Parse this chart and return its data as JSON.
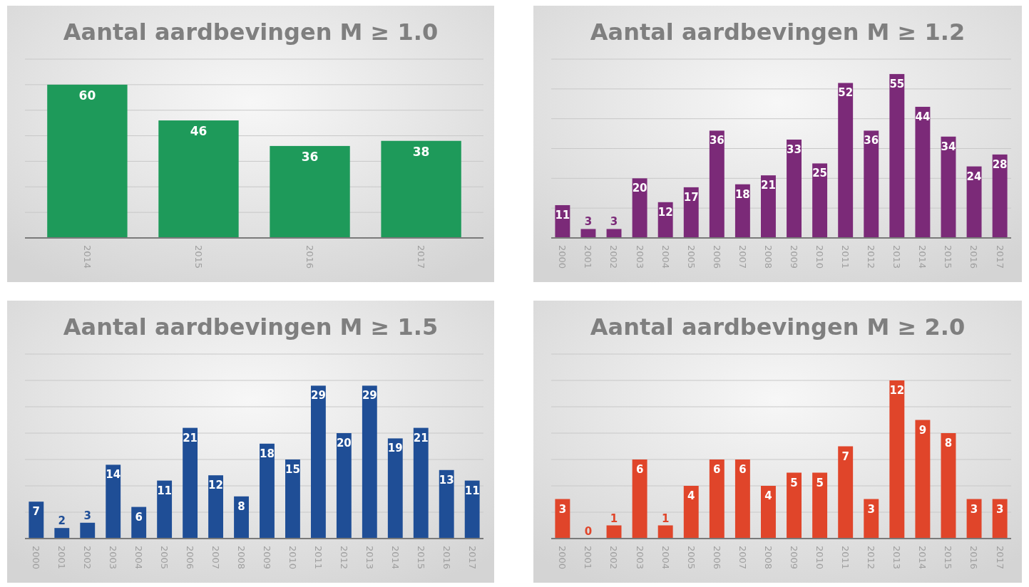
{
  "chart_data": [
    {
      "type": "bar",
      "title": "Aantal aardbevingen M ≥ 1.0",
      "categories": [
        "2014",
        "2015",
        "2016",
        "2017"
      ],
      "values": [
        60,
        46,
        36,
        38
      ],
      "color": "#1e9a5a",
      "ylim": [
        0,
        70
      ],
      "yticks": [
        {
          "value": 0,
          "label": null
        },
        {
          "value": 10,
          "label": null
        },
        {
          "value": 20,
          "label": null
        },
        {
          "value": 30,
          "label": null
        },
        {
          "value": 40,
          "label": null
        },
        {
          "value": 50,
          "label": null
        },
        {
          "value": 60,
          "label": null
        },
        {
          "value": 70,
          "label": null
        }
      ],
      "grid": "y",
      "data_labels": true,
      "tick_labels": "x"
    },
    {
      "type": "bar",
      "title": "Aantal aardbevingen M ≥ 1.2",
      "categories": [
        "2000",
        "2001",
        "2002",
        "2003",
        "2004",
        "2005",
        "2006",
        "2007",
        "2008",
        "2009",
        "2010",
        "2011",
        "2012",
        "2013",
        "2014",
        "2015",
        "2016",
        "2017"
      ],
      "values": [
        11,
        3,
        3,
        20,
        12,
        17,
        36,
        18,
        21,
        33,
        25,
        52,
        36,
        55,
        44,
        34,
        24,
        28
      ],
      "color": "#7b2a78",
      "ylim": [
        0,
        60
      ],
      "yticks": [
        {
          "value": 0,
          "label": null
        },
        {
          "value": 10,
          "label": null
        },
        {
          "value": 20,
          "label": null
        },
        {
          "value": 30,
          "label": null
        },
        {
          "value": 40,
          "label": null
        },
        {
          "value": 50,
          "label": null
        },
        {
          "value": 60,
          "label": null
        }
      ],
      "grid": "y",
      "data_labels": true,
      "tick_labels": "x"
    },
    {
      "type": "bar",
      "title": "Aantal aardbevingen M ≥ 1.5",
      "categories": [
        "2000",
        "2001",
        "2002",
        "2003",
        "2004",
        "2005",
        "2006",
        "2007",
        "2008",
        "2009",
        "2010",
        "2011",
        "2012",
        "2013",
        "2014",
        "2015",
        "2016",
        "2017"
      ],
      "values": [
        7,
        2,
        3,
        14,
        6,
        11,
        21,
        12,
        8,
        18,
        15,
        29,
        20,
        29,
        19,
        21,
        13,
        11
      ],
      "color": "#1f4e96",
      "ylim": [
        0,
        35
      ],
      "yticks": [
        {
          "value": 0,
          "label": null
        },
        {
          "value": 5,
          "label": null
        },
        {
          "value": 10,
          "label": null
        },
        {
          "value": 15,
          "label": null
        },
        {
          "value": 20,
          "label": null
        },
        {
          "value": 25,
          "label": null
        },
        {
          "value": 30,
          "label": null
        },
        {
          "value": 35,
          "label": null
        }
      ],
      "grid": "y",
      "data_labels": true,
      "tick_labels": "x"
    },
    {
      "type": "bar",
      "title": "Aantal aardbevingen M ≥ 2.0",
      "categories": [
        "2000",
        "2001",
        "2002",
        "2003",
        "2004",
        "2005",
        "2006",
        "2007",
        "2008",
        "2009",
        "2010",
        "2011",
        "2012",
        "2013",
        "2014",
        "2015",
        "2016",
        "2017"
      ],
      "values": [
        3,
        0,
        1,
        6,
        1,
        4,
        6,
        6,
        4,
        5,
        5,
        7,
        3,
        12,
        9,
        8,
        3,
        3
      ],
      "color": "#e0452a",
      "ylim": [
        0,
        14
      ],
      "yticks": [
        {
          "value": 0,
          "label": null
        },
        {
          "value": 2,
          "label": null
        },
        {
          "value": 4,
          "label": null
        },
        {
          "value": 6,
          "label": null
        },
        {
          "value": 8,
          "label": null
        },
        {
          "value": 10,
          "label": null
        },
        {
          "value": 12,
          "label": null
        },
        {
          "value": 14,
          "label": null
        }
      ],
      "grid": "y",
      "data_labels": true,
      "tick_labels": "x"
    }
  ]
}
